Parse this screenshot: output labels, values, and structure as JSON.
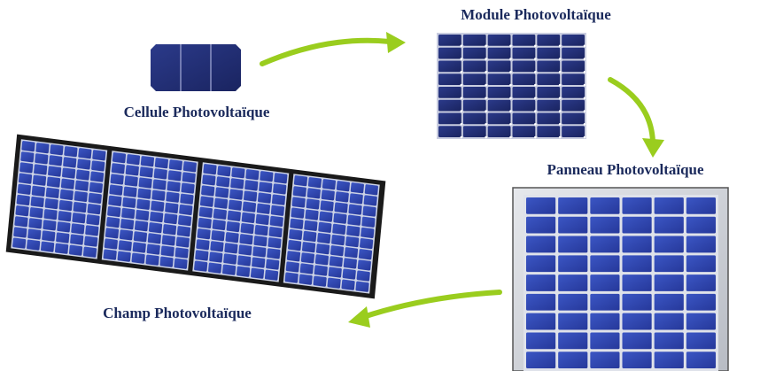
{
  "nodes": [
    {
      "label": "Cellule Photovoltaïque"
    },
    {
      "label": "Module Photovoltaïque"
    },
    {
      "label": "Panneau Photovoltaïque"
    },
    {
      "label": "Champ Photovoltaïque"
    }
  ]
}
